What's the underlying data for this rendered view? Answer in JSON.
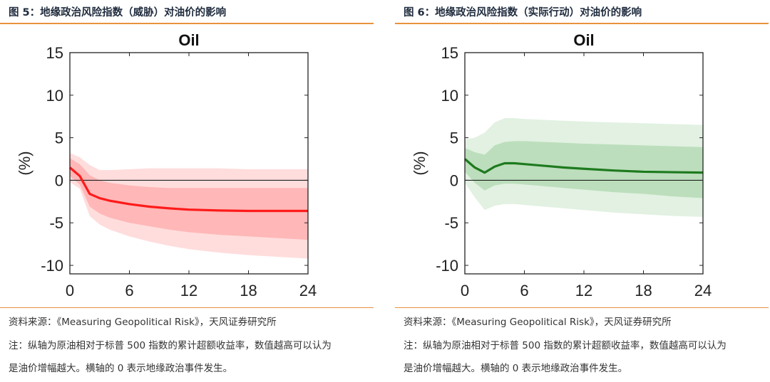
{
  "figures": [
    {
      "title": "图 5：地缘政治风险指数（威胁）对油价的影响",
      "source": "资料来源：《Measuring Geopolitical Risk》，天风证券研究所",
      "note_line1": "注：纵轴为原油相对于标普 500 指数的累计超额收益率，数值越高可以认为",
      "note_line2": "是油价增幅越大。横轴的 0 表示地缘政治事件发生。"
    },
    {
      "title": "图 6：地缘政治风险指数（实际行动）对油价的影响",
      "source": "资料来源：《Measuring Geopolitical Risk》，天风证券研究所",
      "note_line1": "注：纵轴为原油相对于标普 500 指数的累计超额收益率，数值越高可以认为",
      "note_line2": "是油价增幅越大。横轴的 0 表示地缘政治事件发生。"
    }
  ],
  "chart_data": [
    {
      "type": "line",
      "title": "Oil",
      "ylabel": "(%)",
      "xlabel": "",
      "xlim": [
        0,
        24
      ],
      "ylim": [
        -11,
        15
      ],
      "x_ticks": [
        0,
        6,
        12,
        18,
        24
      ],
      "y_ticks": [
        15,
        10,
        5,
        0,
        -5,
        -10
      ],
      "zero_line": true,
      "colors": {
        "line": "#ff1a1a",
        "band_inner": "#ffb3b3",
        "band_outer": "#ffd9d9"
      },
      "x": [
        0,
        1,
        2,
        3,
        4,
        6,
        8,
        10,
        12,
        15,
        18,
        21,
        24
      ],
      "series": [
        {
          "values": [
            1.5,
            0.5,
            -1.6,
            -2.1,
            -2.4,
            -2.8,
            -3.1,
            -3.3,
            -3.45,
            -3.55,
            -3.6,
            -3.6,
            -3.6
          ]
        }
      ],
      "bands": [
        {
          "level": "outer",
          "upper": [
            3.2,
            2.7,
            1.8,
            1.2,
            1.2,
            1.3,
            1.4,
            1.4,
            1.4,
            1.4,
            1.3,
            1.3,
            1.3
          ],
          "lower": [
            -0.2,
            -1.0,
            -4.2,
            -5.2,
            -5.8,
            -6.6,
            -7.2,
            -7.7,
            -8.1,
            -8.5,
            -8.8,
            -9.0,
            -9.2
          ]
        },
        {
          "level": "inner",
          "upper": [
            2.6,
            1.9,
            0.6,
            0.0,
            -0.3,
            -0.6,
            -0.8,
            -0.9,
            -0.9,
            -0.9,
            -0.9,
            -0.9,
            -0.9
          ],
          "lower": [
            0.5,
            -0.5,
            -3.1,
            -3.9,
            -4.4,
            -5.0,
            -5.4,
            -5.8,
            -6.1,
            -6.4,
            -6.6,
            -6.8,
            -7.0
          ]
        }
      ]
    },
    {
      "type": "line",
      "title": "Oil",
      "ylabel": "(%)",
      "xlabel": "",
      "xlim": [
        0,
        24
      ],
      "ylim": [
        -11,
        15
      ],
      "x_ticks": [
        0,
        6,
        12,
        18,
        24
      ],
      "y_ticks": [
        15,
        10,
        5,
        0,
        -5,
        -10
      ],
      "zero_line": true,
      "colors": {
        "line": "#1e7a1e",
        "band_inner": "#b8dcb8",
        "band_outer": "#dff0df"
      },
      "x": [
        0,
        1,
        2,
        3,
        4,
        5,
        6,
        8,
        10,
        12,
        15,
        18,
        21,
        24
      ],
      "series": [
        {
          "values": [
            2.5,
            1.5,
            0.9,
            1.6,
            2.0,
            2.0,
            1.9,
            1.7,
            1.5,
            1.35,
            1.15,
            1.0,
            0.95,
            0.9
          ]
        }
      ],
      "bands": [
        {
          "level": "outer",
          "upper": [
            4.8,
            5.0,
            5.6,
            6.8,
            7.3,
            7.3,
            7.2,
            7.1,
            7.0,
            6.9,
            6.8,
            6.7,
            6.6,
            6.5
          ],
          "lower": [
            -0.3,
            -2.0,
            -3.5,
            -3.0,
            -2.8,
            -2.8,
            -2.9,
            -3.1,
            -3.3,
            -3.5,
            -3.8,
            -4.0,
            -4.2,
            -4.3
          ]
        },
        {
          "level": "inner",
          "upper": [
            3.8,
            3.3,
            3.0,
            4.1,
            4.5,
            4.6,
            4.6,
            4.5,
            4.4,
            4.3,
            4.2,
            4.1,
            4.0,
            3.9
          ],
          "lower": [
            1.0,
            -0.3,
            -1.2,
            -0.6,
            -0.4,
            -0.4,
            -0.5,
            -0.7,
            -0.9,
            -1.1,
            -1.4,
            -1.6,
            -1.9,
            -2.1
          ]
        }
      ]
    }
  ]
}
